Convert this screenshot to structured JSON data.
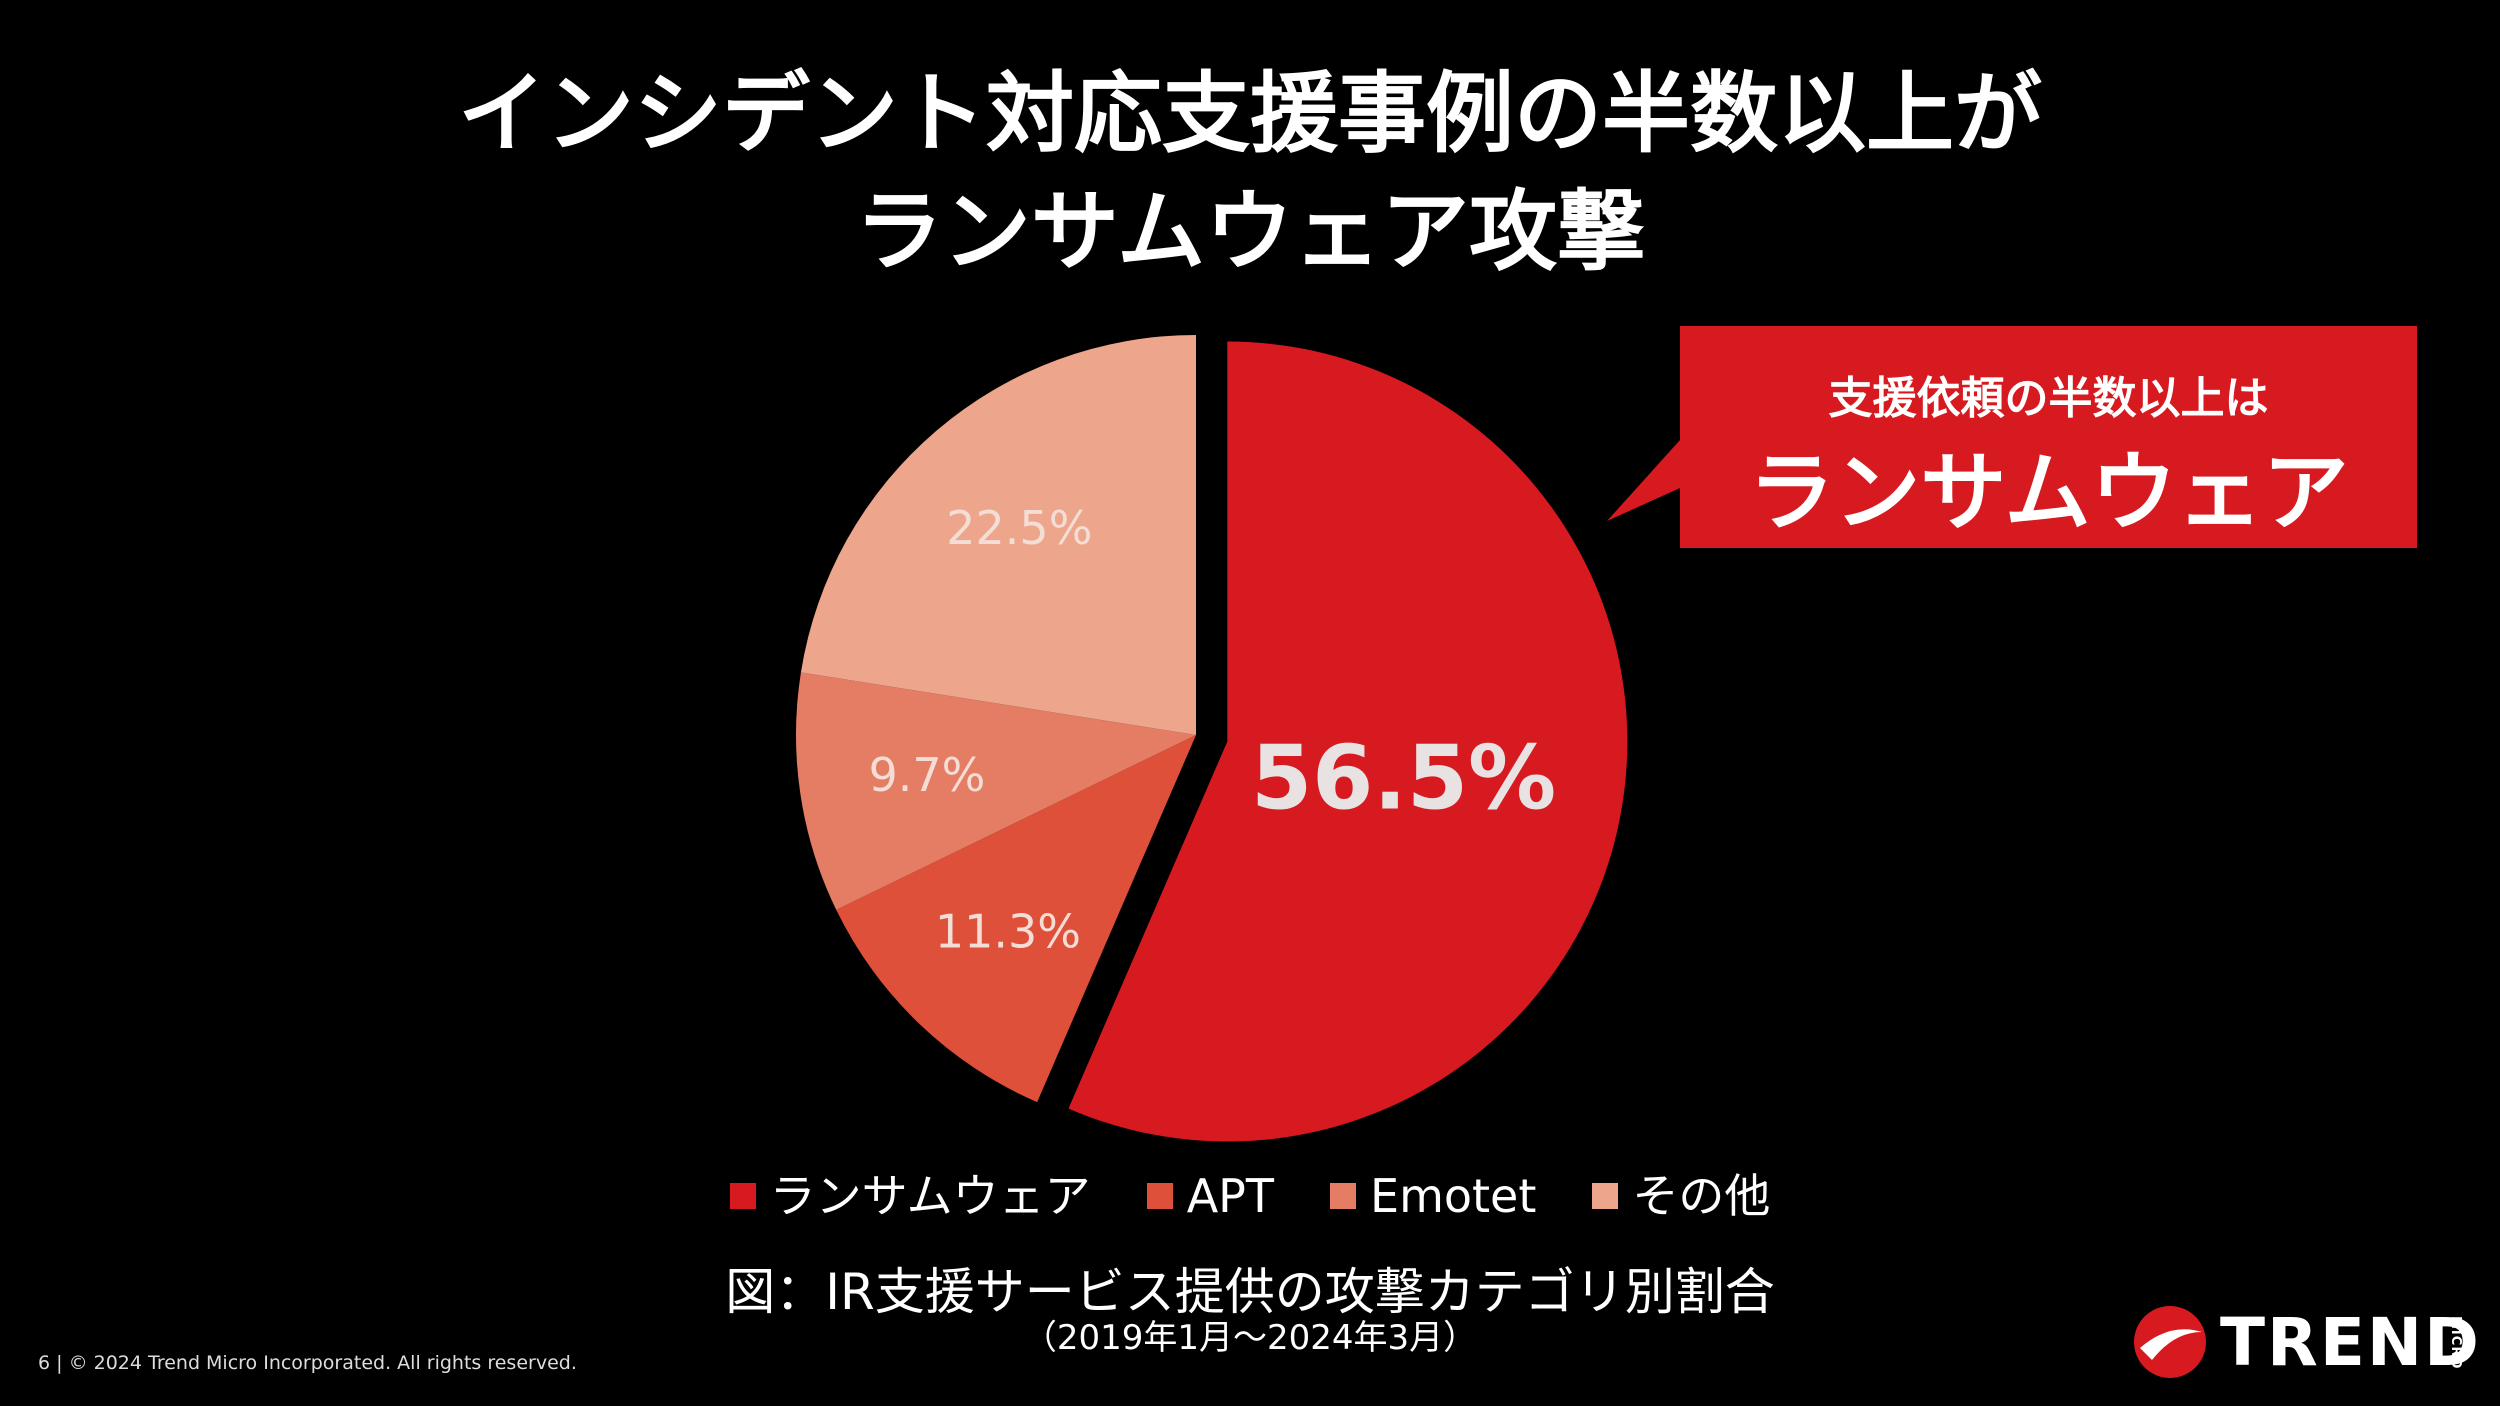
{
  "title": {
    "line1": "インシデント対応支援事例の半数以上が",
    "line2": "ランサムウェア攻撃"
  },
  "callout": {
    "subtitle": "支援依頼の半数以上は",
    "main": "ランサムウェア",
    "color": "#d71920"
  },
  "chart_data": {
    "type": "pie",
    "categories": [
      "ランサムウェア",
      "APT",
      "Emotet",
      "その他"
    ],
    "values": [
      56.5,
      11.3,
      9.7,
      22.5
    ],
    "labels": [
      "56.5%",
      "11.3%",
      "9.7%",
      "22.5%"
    ],
    "colors": [
      "#d71920",
      "#de503a",
      "#e57c64",
      "#eda58c"
    ],
    "exploded": [
      "ランサムウェア"
    ],
    "legend_position": "bottom"
  },
  "caption": "図：IR支援サービス提供の攻撃カテゴリ別割合",
  "period": "（2019年1月～2024年3月）",
  "footer": "6 | © 2024 Trend Micro Incorporated. All rights reserved.",
  "logo": {
    "word": "TREND",
    "micro": "MICRO",
    "icon": "trend-micro-logo-icon"
  }
}
